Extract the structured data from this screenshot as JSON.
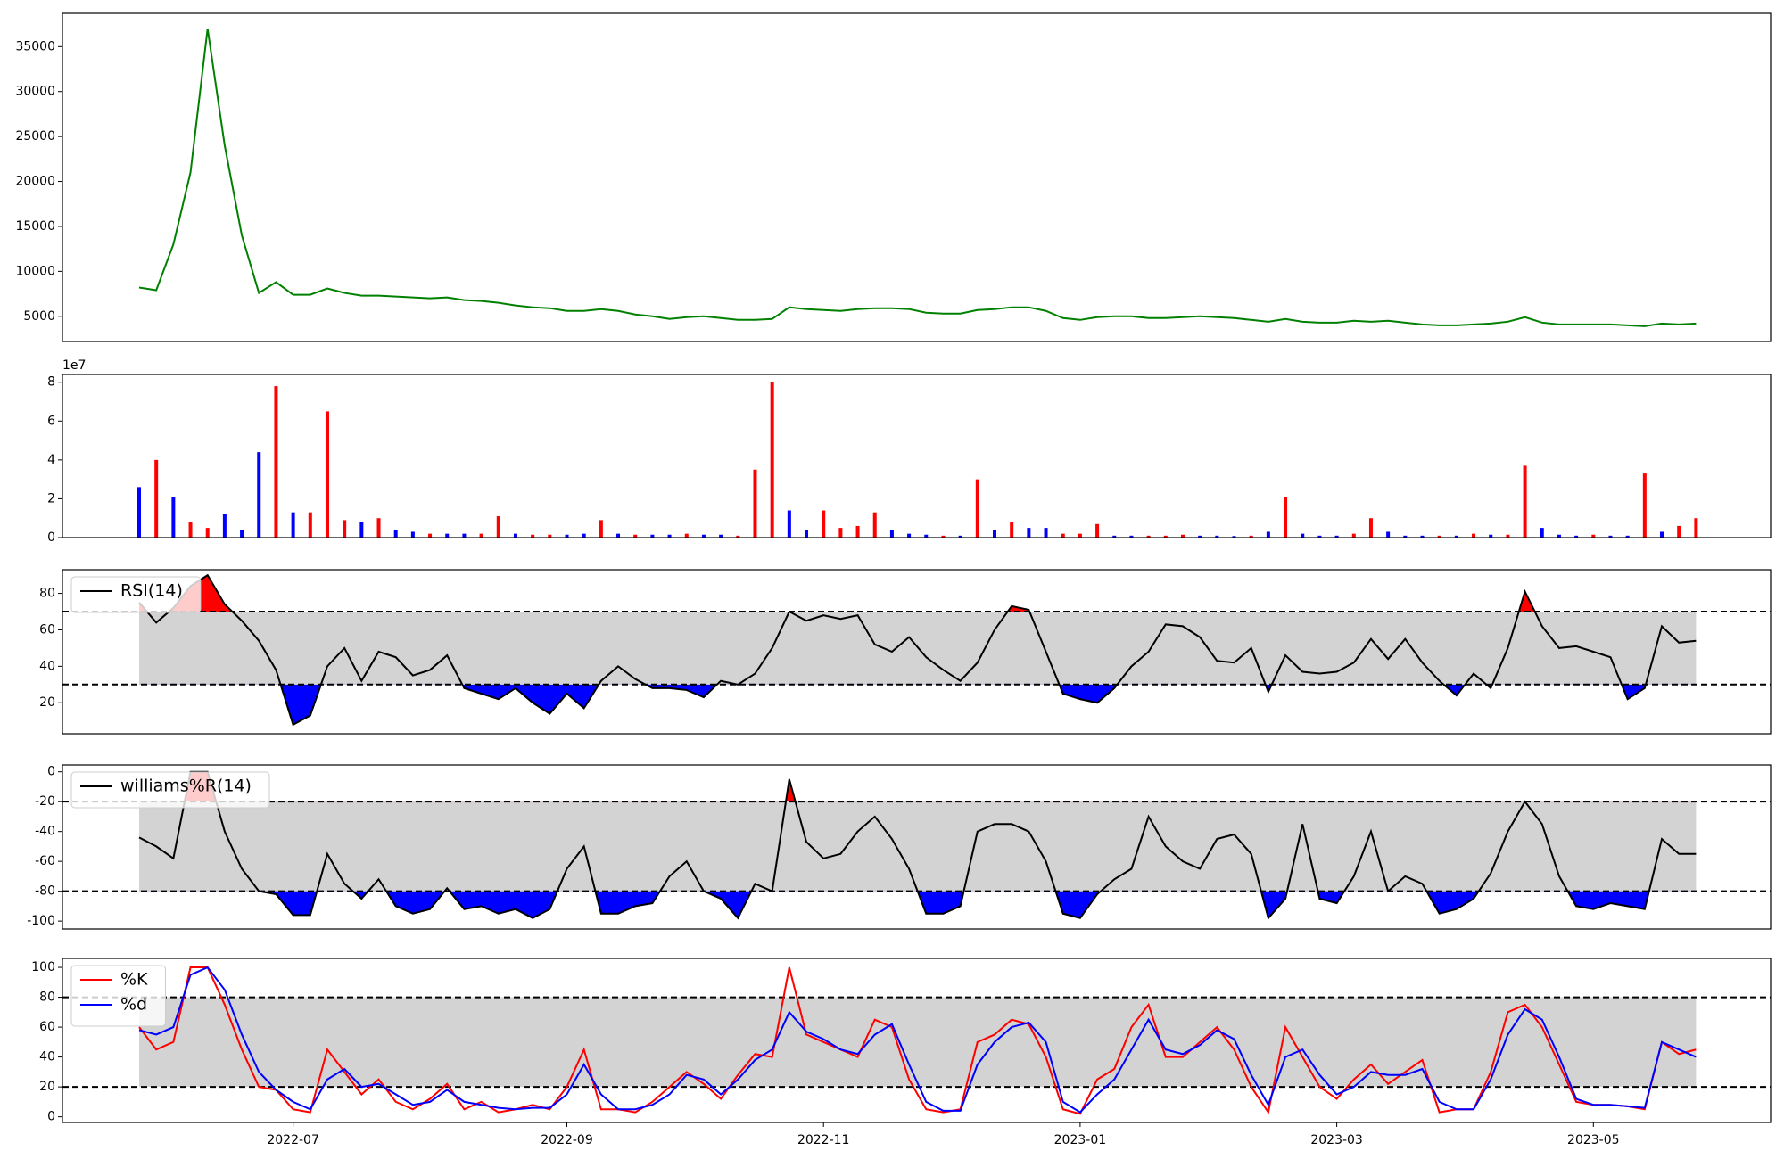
{
  "chart_data": [
    {
      "type": "line",
      "color": "green",
      "values": [
        8200,
        7900,
        13000,
        21000,
        37000,
        24000,
        14000,
        7600,
        8800,
        7400,
        7400,
        8100,
        7600,
        7300,
        7300,
        7200,
        7100,
        7000,
        7100,
        6800,
        6700,
        6500,
        6200,
        6000,
        5900,
        5600,
        5600,
        5800,
        5600,
        5200,
        5000,
        4700,
        4900,
        5000,
        4800,
        4600,
        4600,
        4700,
        6000,
        5800,
        5700,
        5600,
        5800,
        5900,
        5900,
        5800,
        5400,
        5300,
        5300,
        5700,
        5800,
        6000,
        6000,
        5600,
        4800,
        4600,
        4900,
        5000,
        5000,
        4800,
        4800,
        4900,
        5000,
        4900,
        4800,
        4600,
        4400,
        4700,
        4400,
        4300,
        4300,
        4500,
        4400,
        4500,
        4300,
        4100,
        4000,
        4000,
        4100,
        4200,
        4400,
        4900,
        4300,
        4100,
        4100,
        4100,
        4100,
        4000,
        3900,
        4200,
        4100,
        4200
      ],
      "ylim": [
        2200,
        38700
      ],
      "yticks": [
        5000,
        10000,
        15000,
        20000,
        25000,
        30000,
        35000
      ]
    },
    {
      "type": "bar",
      "values": [
        26000000,
        40000000,
        21000000,
        8000000,
        5000000,
        12000000,
        4000000,
        44000000,
        78000000,
        13000000,
        13000000,
        65000000,
        9000000,
        8000000,
        10000000,
        4000000,
        3000000,
        2000000,
        2000000,
        2000000,
        2000000,
        11000000,
        2000000,
        1500000,
        1500000,
        1500000,
        2000000,
        9000000,
        2000000,
        1500000,
        1500000,
        1500000,
        2000000,
        1500000,
        1500000,
        1000000,
        35000000,
        80000000,
        14000000,
        4000000,
        14000000,
        5000000,
        6000000,
        13000000,
        4000000,
        2000000,
        1500000,
        1000000,
        1000000,
        30000000,
        4000000,
        8000000,
        5000000,
        5000000,
        2000000,
        2000000,
        7000000,
        1000000,
        1000000,
        1000000,
        1000000,
        1500000,
        1000000,
        1000000,
        800000,
        1000000,
        3000000,
        21000000,
        2000000,
        1000000,
        1000000,
        2000000,
        10000000,
        3000000,
        1000000,
        1000000,
        1000000,
        1000000,
        2000000,
        1500000,
        1500000,
        37000000,
        5000000,
        1500000,
        1000000,
        1500000,
        1000000,
        1000000,
        33000000,
        3000000,
        6000000,
        10000000
      ],
      "colors": [
        "blue",
        "red",
        "blue",
        "red",
        "red",
        "blue",
        "blue",
        "blue",
        "red",
        "blue",
        "red",
        "red",
        "red",
        "blue",
        "red",
        "blue",
        "blue",
        "red",
        "blue",
        "blue",
        "red",
        "red",
        "blue",
        "red",
        "red",
        "blue",
        "blue",
        "red",
        "blue",
        "red",
        "blue",
        "blue",
        "red",
        "blue",
        "blue",
        "red",
        "red",
        "red",
        "blue",
        "blue",
        "red",
        "red",
        "red",
        "red",
        "blue",
        "blue",
        "blue",
        "red",
        "blue",
        "red",
        "blue",
        "red",
        "blue",
        "blue",
        "red",
        "red",
        "red",
        "blue",
        "blue",
        "red",
        "red",
        "red",
        "blue",
        "blue",
        "blue",
        "red",
        "blue",
        "red",
        "blue",
        "blue",
        "blue",
        "red",
        "red",
        "blue",
        "blue",
        "blue",
        "red",
        "blue",
        "red",
        "blue",
        "red",
        "red",
        "blue",
        "blue",
        "blue",
        "red",
        "blue",
        "blue",
        "red",
        "blue",
        "red",
        "red"
      ],
      "ylim": [
        0,
        84000000
      ],
      "yticks": [
        0,
        {
          "value": 20000000,
          "label": "2"
        },
        {
          "value": 40000000,
          "label": "4"
        },
        {
          "value": 60000000,
          "label": "6"
        },
        {
          "value": 80000000,
          "label": "8"
        }
      ],
      "offset_text": "1e7"
    },
    {
      "type": "line",
      "series": [
        {
          "name": "RSI(14)",
          "color": "black",
          "values": [
            75,
            64,
            72,
            84,
            90,
            74,
            65,
            54,
            38,
            8,
            13,
            40,
            50,
            32,
            48,
            45,
            35,
            38,
            46,
            28,
            25,
            22,
            28,
            20,
            14,
            25,
            17,
            32,
            40,
            33,
            28,
            28,
            27,
            23,
            32,
            30,
            36,
            50,
            70,
            65,
            68,
            66,
            68,
            52,
            48,
            56,
            45,
            38,
            32,
            42,
            60,
            73,
            71,
            48,
            25,
            22,
            20,
            28,
            40,
            48,
            63,
            62,
            56,
            43,
            42,
            50,
            26,
            46,
            37,
            36,
            37,
            42,
            55,
            44,
            55,
            42,
            32,
            24,
            36,
            28,
            50,
            81,
            62,
            50,
            51,
            48,
            45,
            22,
            28,
            62,
            53,
            54
          ]
        }
      ],
      "ylim": [
        3,
        93
      ],
      "yticks": [
        20,
        40,
        60,
        80
      ],
      "hlines": [
        70,
        30
      ],
      "band_color": "lightgray",
      "over_color": "red",
      "under_color": "blue",
      "legend": "upper left"
    },
    {
      "type": "line",
      "series": [
        {
          "name": "williams%R(14)",
          "color": "black",
          "values": [
            -44,
            -50,
            -58,
            0,
            0,
            -40,
            -65,
            -80,
            -82,
            -96,
            -96,
            -55,
            -75,
            -85,
            -72,
            -90,
            -95,
            -92,
            -78,
            -92,
            -90,
            -95,
            -92,
            -98,
            -92,
            -65,
            -50,
            -95,
            -95,
            -90,
            -88,
            -70,
            -60,
            -80,
            -85,
            -98,
            -75,
            -80,
            -5,
            -47,
            -58,
            -55,
            -40,
            -30,
            -45,
            -65,
            -95,
            -95,
            -90,
            -40,
            -35,
            -35,
            -40,
            -60,
            -95,
            -98,
            -82,
            -72,
            -65,
            -30,
            -50,
            -60,
            -65,
            -45,
            -42,
            -55,
            -98,
            -85,
            -35,
            -85,
            -88,
            -70,
            -40,
            -80,
            -70,
            -75,
            -95,
            -92,
            -85,
            -68,
            -40,
            -20,
            -35,
            -70,
            -90,
            -92,
            -88,
            -90,
            -92,
            -45,
            -55,
            -55
          ]
        }
      ],
      "ylim": [
        -105.3,
        4.6
      ],
      "yticks": [
        -100,
        -80,
        -60,
        -40,
        -20,
        0
      ],
      "hlines": [
        -20,
        -80
      ],
      "band_color": "lightgray",
      "over_color": "red",
      "under_color": "blue",
      "legend": "upper left"
    },
    {
      "type": "line",
      "series": [
        {
          "name": "%K",
          "color": "red",
          "values": [
            60,
            45,
            50,
            100,
            100,
            75,
            45,
            20,
            18,
            5,
            3,
            45,
            30,
            15,
            25,
            10,
            5,
            12,
            22,
            5,
            10,
            3,
            5,
            8,
            5,
            20,
            45,
            5,
            5,
            3,
            10,
            20,
            30,
            22,
            12,
            28,
            42,
            40,
            100,
            55,
            50,
            45,
            40,
            65,
            60,
            25,
            5,
            3,
            5,
            50,
            55,
            65,
            62,
            40,
            5,
            2,
            25,
            32,
            60,
            75,
            40,
            40,
            50,
            60,
            45,
            20,
            3,
            60,
            40,
            20,
            12,
            25,
            35,
            22,
            30,
            38,
            3,
            5,
            5,
            30,
            70,
            75,
            60,
            35,
            10,
            8,
            8,
            7,
            5,
            50,
            42,
            45
          ]
        },
        {
          "name": "%d",
          "color": "blue",
          "values": [
            58,
            55,
            60,
            95,
            100,
            85,
            55,
            30,
            18,
            10,
            5,
            25,
            32,
            20,
            22,
            15,
            8,
            10,
            18,
            10,
            8,
            6,
            5,
            6,
            6,
            15,
            35,
            15,
            5,
            5,
            8,
            15,
            28,
            25,
            15,
            25,
            38,
            45,
            70,
            57,
            52,
            45,
            42,
            55,
            62,
            35,
            10,
            4,
            4,
            35,
            50,
            60,
            63,
            50,
            10,
            3,
            15,
            25,
            45,
            65,
            45,
            42,
            48,
            58,
            52,
            28,
            8,
            40,
            45,
            28,
            15,
            20,
            30,
            28,
            28,
            32,
            10,
            5,
            5,
            25,
            55,
            72,
            65,
            40,
            12,
            8,
            8,
            7,
            6,
            50,
            45,
            40
          ]
        }
      ],
      "ylim": [
        -3.8,
        106
      ],
      "yticks": [
        0,
        20,
        40,
        60,
        80,
        100
      ],
      "hlines": [
        80,
        20
      ],
      "band_color": "lightgray",
      "legend": "upper left",
      "categories": [
        null,
        null,
        null,
        null,
        null,
        null,
        null,
        null,
        null,
        "2022-07",
        null,
        null,
        null,
        null,
        null,
        null,
        null,
        null,
        null,
        null,
        null,
        null,
        null,
        null,
        null,
        "2022-09",
        null,
        null,
        null,
        null,
        null,
        null,
        null,
        null,
        null,
        null,
        null,
        null,
        null,
        null,
        "2022-11",
        null,
        null,
        null,
        null,
        null,
        null,
        null,
        null,
        null,
        null,
        null,
        null,
        null,
        null,
        "2023-01",
        null,
        null,
        null,
        null,
        null,
        null,
        null,
        null,
        null,
        null,
        null,
        null,
        null,
        null,
        "2023-03",
        null,
        null,
        null,
        null,
        null,
        null,
        null,
        null,
        null,
        null,
        null,
        null,
        null,
        null,
        "2023-05",
        null,
        null,
        null,
        null,
        null,
        null
      ]
    }
  ]
}
